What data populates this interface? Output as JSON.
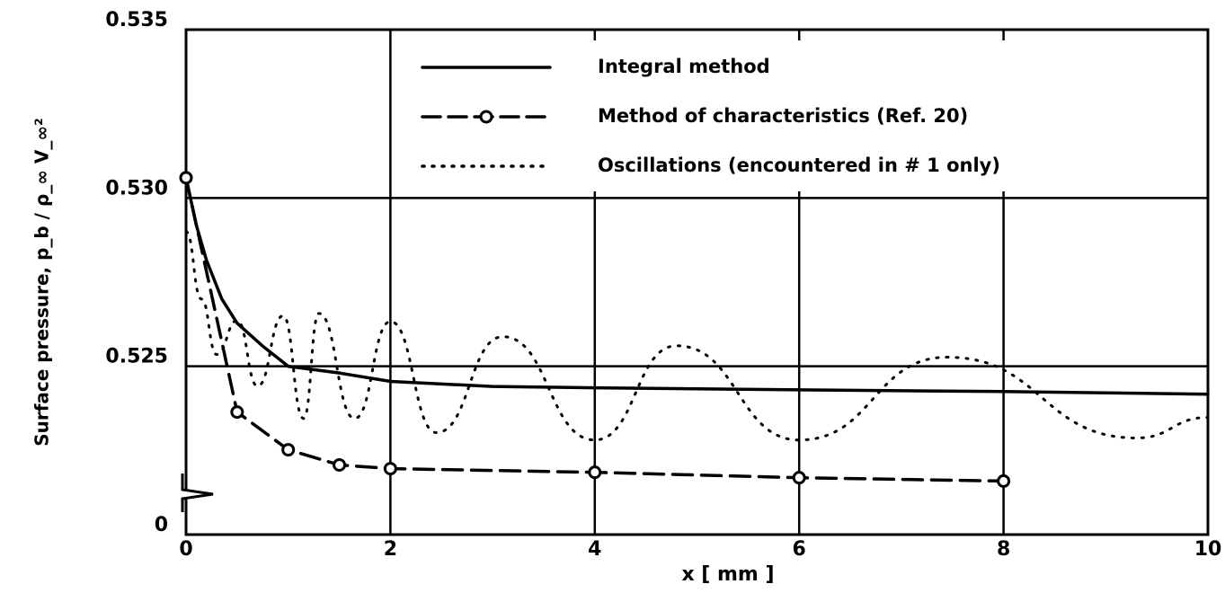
{
  "chart_data": {
    "type": "line",
    "xlabel": "x [ mm ]",
    "ylabel": "Surface pressure, p_b / ρ_∞ V_∞²",
    "xlim": [
      0,
      10
    ],
    "xticks": [
      0,
      2,
      4,
      6,
      8,
      10
    ],
    "ylim": [
      0.52,
      0.535
    ],
    "yticks": [
      {
        "value": 0.52,
        "label": "0"
      },
      {
        "value": 0.525,
        "label": "0.525"
      },
      {
        "value": 0.53,
        "label": "0.530"
      },
      {
        "value": 0.535,
        "label": "0.535"
      }
    ],
    "grid": true,
    "series": [
      {
        "name": "Integral method",
        "style": "solid",
        "color": "#000",
        "x": [
          0,
          0.1,
          0.2,
          0.35,
          0.5,
          0.75,
          1,
          1.5,
          2,
          3,
          4,
          6,
          8,
          10
        ],
        "values": [
          0.5306,
          0.5292,
          0.52815,
          0.527,
          0.52628,
          0.5256,
          0.525,
          0.5248,
          0.52455,
          0.5244,
          0.52436,
          0.5243,
          0.52425,
          0.52417
        ]
      },
      {
        "name": "Method of characteristics (Ref. 20)",
        "style": "dashed",
        "markers": true,
        "color": "#000",
        "x": [
          0,
          0.5,
          1,
          1.5,
          2,
          4,
          6,
          8
        ],
        "values": [
          0.5306,
          0.52364,
          0.52252,
          0.52207,
          0.52196,
          0.52185,
          0.52169,
          0.52159
        ]
      },
      {
        "name": "Oscillations (encountered in # 1 only)",
        "style": "dotted",
        "color": "#000",
        "x": [
          0,
          0.15,
          0.3,
          0.5,
          0.7,
          0.95,
          1.15,
          1.3,
          1.65,
          2.0,
          2.45,
          3.1,
          4.0,
          4.8,
          6.0,
          7.45,
          9.3,
          10
        ],
        "values": [
          0.529,
          0.527,
          0.52535,
          0.52636,
          0.52441,
          0.5265,
          0.52345,
          0.52657,
          0.52345,
          0.52633,
          0.52303,
          0.52588,
          0.52281,
          0.52561,
          0.52281,
          0.52527,
          0.52287,
          0.52348
        ]
      }
    ]
  }
}
